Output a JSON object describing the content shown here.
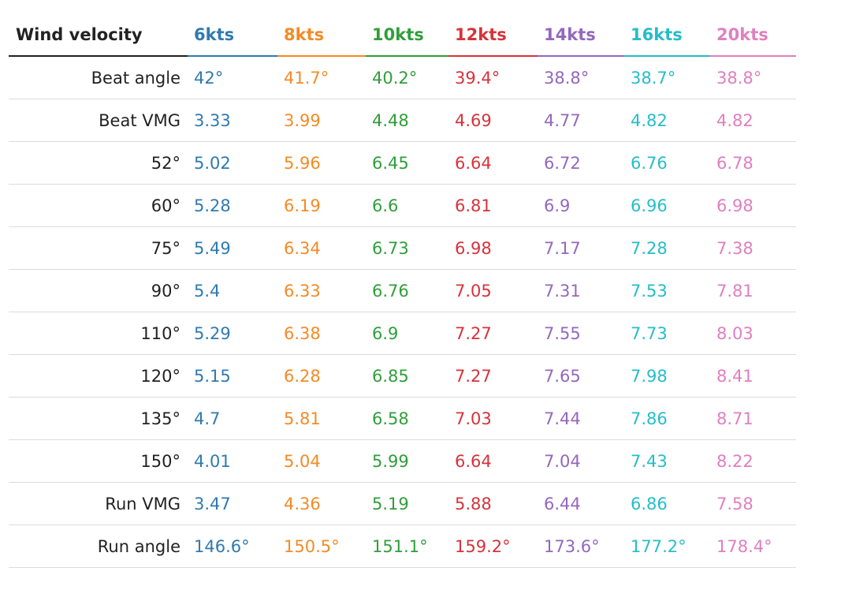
{
  "table": {
    "header_label": "Wind velocity",
    "columns": [
      {
        "label": "6kts",
        "color": "#2f7ab0"
      },
      {
        "label": "8kts",
        "color": "#f58a25"
      },
      {
        "label": "10kts",
        "color": "#2f9e3a"
      },
      {
        "label": "12kts",
        "color": "#d6333a"
      },
      {
        "label": "14kts",
        "color": "#9467bd"
      },
      {
        "label": "16kts",
        "color": "#25bdc9"
      },
      {
        "label": "20kts",
        "color": "#e07fc0"
      }
    ],
    "rows": [
      {
        "label": "Beat angle",
        "values": [
          "42°",
          "41.7°",
          "40.2°",
          "39.4°",
          "38.8°",
          "38.7°",
          "38.8°"
        ]
      },
      {
        "label": "Beat VMG",
        "values": [
          "3.33",
          "3.99",
          "4.48",
          "4.69",
          "4.77",
          "4.82",
          "4.82"
        ]
      },
      {
        "label": "52°",
        "values": [
          "5.02",
          "5.96",
          "6.45",
          "6.64",
          "6.72",
          "6.76",
          "6.78"
        ]
      },
      {
        "label": "60°",
        "values": [
          "5.28",
          "6.19",
          "6.6",
          "6.81",
          "6.9",
          "6.96",
          "6.98"
        ]
      },
      {
        "label": "75°",
        "values": [
          "5.49",
          "6.34",
          "6.73",
          "6.98",
          "7.17",
          "7.28",
          "7.38"
        ]
      },
      {
        "label": "90°",
        "values": [
          "5.4",
          "6.33",
          "6.76",
          "7.05",
          "7.31",
          "7.53",
          "7.81"
        ]
      },
      {
        "label": "110°",
        "values": [
          "5.29",
          "6.38",
          "6.9",
          "7.27",
          "7.55",
          "7.73",
          "8.03"
        ]
      },
      {
        "label": "120°",
        "values": [
          "5.15",
          "6.28",
          "6.85",
          "7.27",
          "7.65",
          "7.98",
          "8.41"
        ]
      },
      {
        "label": "135°",
        "values": [
          "4.7",
          "5.81",
          "6.58",
          "7.03",
          "7.44",
          "7.86",
          "8.71"
        ]
      },
      {
        "label": "150°",
        "values": [
          "4.01",
          "5.04",
          "5.99",
          "6.64",
          "7.04",
          "7.43",
          "8.22"
        ]
      },
      {
        "label": "Run VMG",
        "values": [
          "3.47",
          "4.36",
          "5.19",
          "5.88",
          "6.44",
          "6.86",
          "7.58"
        ]
      },
      {
        "label": "Run angle",
        "values": [
          "146.6°",
          "150.5°",
          "151.1°",
          "159.2°",
          "173.6°",
          "177.2°",
          "178.4°"
        ]
      }
    ]
  }
}
